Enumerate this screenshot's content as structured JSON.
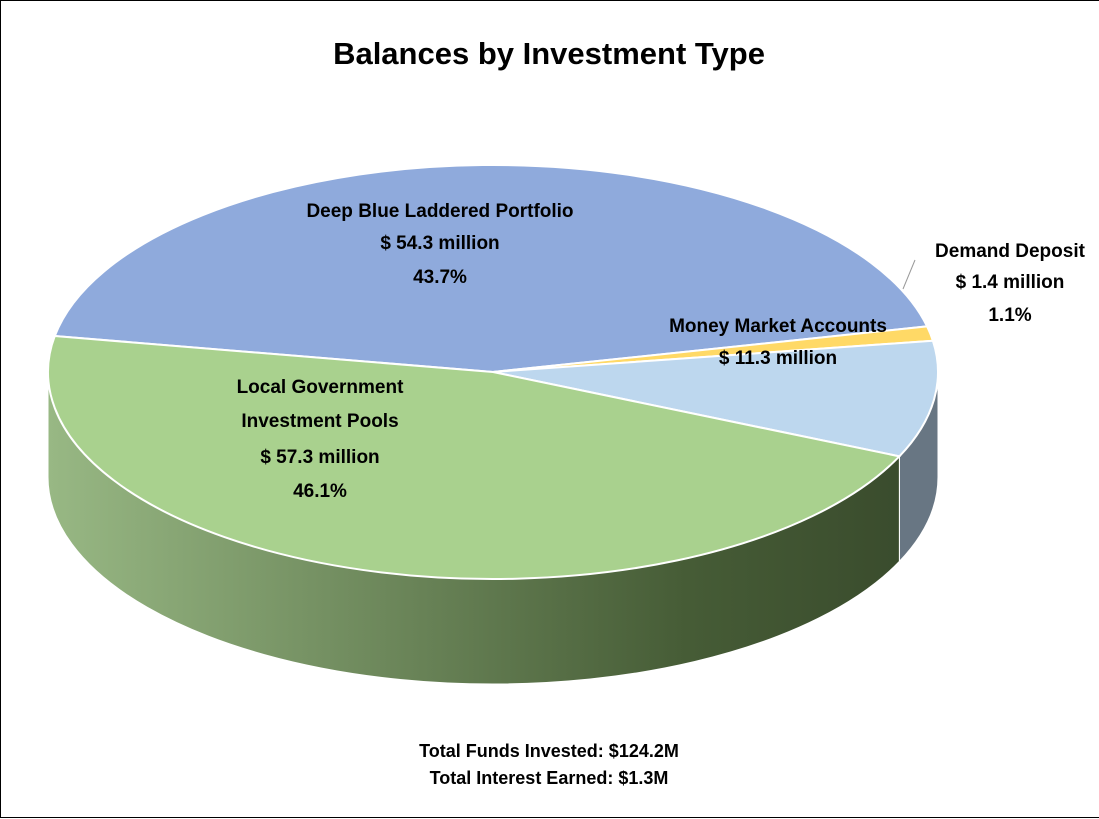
{
  "chart_data": {
    "type": "pie",
    "title": "Balances by Investment Type",
    "categories": [
      "Deep Blue Laddered Portfolio",
      "Demand Deposit",
      "Money Market Accounts",
      "Local Government Investment Pools"
    ],
    "values": [
      54.3,
      1.4,
      11.3,
      57.3
    ],
    "value_labels": [
      "$ 54.3 million",
      "$ 1.4 million",
      "$ 11.3 million",
      "$ 57.3 million"
    ],
    "percent_labels": [
      "43.7%",
      "1.1%",
      null,
      "46.1%"
    ],
    "colors": [
      "#8faadc",
      "#ffd966",
      "#bdd7ee",
      "#a9d18e"
    ],
    "annotations": [
      "Total Funds Invested: $124.2M",
      "Total Interest Earned: $1.3M"
    ]
  }
}
